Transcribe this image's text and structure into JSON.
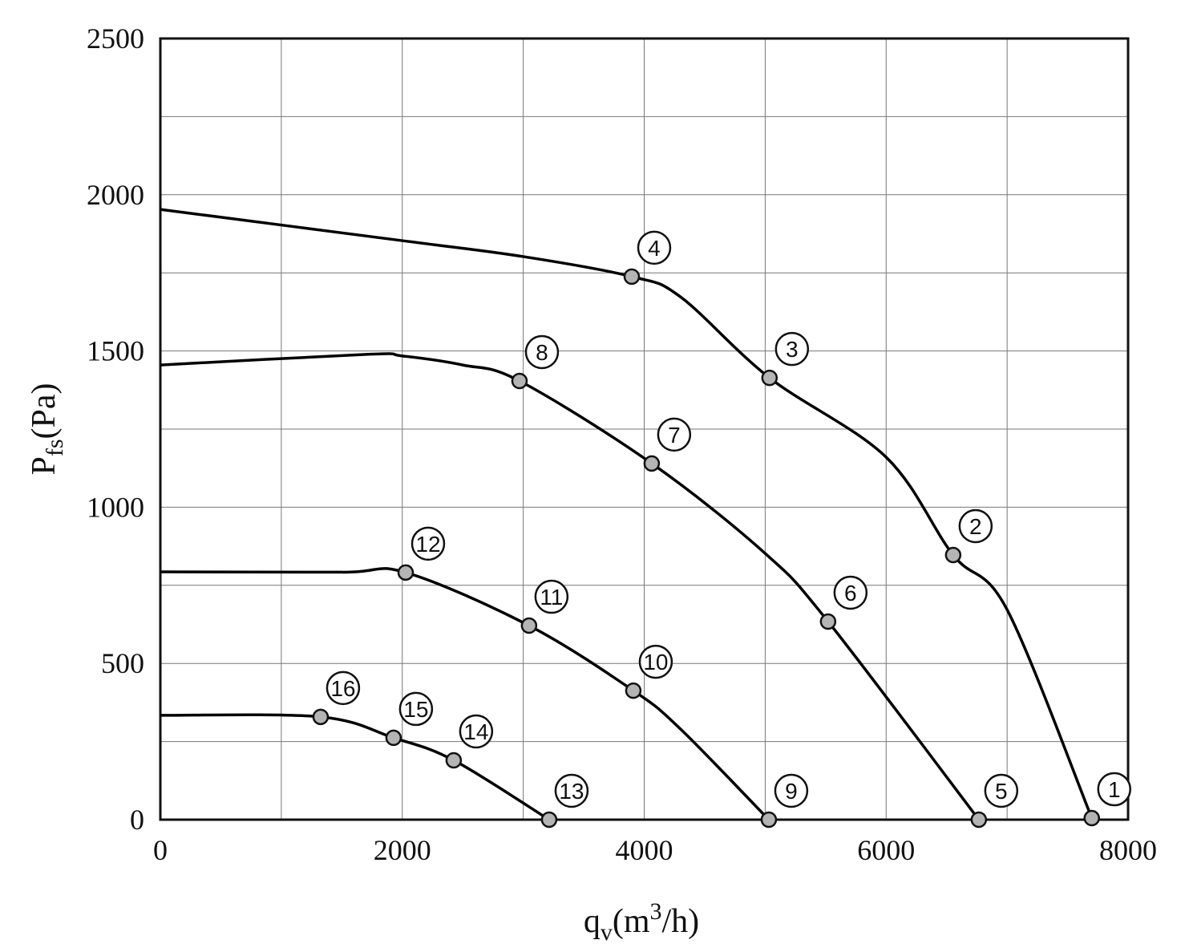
{
  "chart_data": {
    "type": "line",
    "x_label": [
      "q",
      "v",
      "(m",
      "3",
      "/h)"
    ],
    "y_label": [
      "P",
      "fs",
      "(Pa)"
    ],
    "xlim": [
      0,
      8000
    ],
    "xticks": [
      0,
      2000,
      4000,
      6000,
      8000
    ],
    "x_minor_ticks": [
      1000,
      3000,
      5000,
      7000
    ],
    "ylim": [
      0,
      2500
    ],
    "yticks": [
      0,
      500,
      1000,
      1500,
      2000,
      2500
    ],
    "y_minor_ticks": [
      250,
      750,
      1250,
      1750,
      2250
    ],
    "grid": true,
    "series": [
      {
        "color": "#000000",
        "x": [
          0,
          2000,
          3000,
          3897,
          4300,
          5036,
          6000,
          6554,
          7000,
          7700
        ],
        "values": [
          1953,
          1853,
          1802,
          1738,
          1673,
          1414,
          1160,
          847,
          672,
          5
        ],
        "points": {
          "x": [
            3897,
            5036,
            6554,
            7700
          ],
          "values": [
            1738,
            1414,
            847,
            5
          ],
          "labels": [
            "4",
            "3",
            "2",
            "1"
          ]
        }
      },
      {
        "color": "#000000",
        "x": [
          0,
          1700,
          2000,
          2500,
          2969,
          4062,
          5000,
          5520,
          6766
        ],
        "values": [
          1455,
          1489,
          1484,
          1455,
          1404,
          1140,
          852,
          634,
          0
        ],
        "points": {
          "x": [
            2969,
            4062,
            5520,
            6766
          ],
          "values": [
            1404,
            1140,
            634,
            0
          ],
          "labels": [
            "8",
            "7",
            "6",
            "5"
          ]
        }
      },
      {
        "color": "#000000",
        "x": [
          0,
          1500,
          2028,
          3048,
          3910,
          4300,
          5030
        ],
        "values": [
          793,
          792,
          791,
          621,
          413,
          290,
          0
        ],
        "points": {
          "x": [
            2028,
            3048,
            3910,
            5030
          ],
          "values": [
            791,
            621,
            413,
            0
          ],
          "labels": [
            "12",
            "11",
            "10",
            "9"
          ]
        }
      },
      {
        "color": "#000000",
        "x": [
          0,
          1325,
          1928,
          2425,
          3214
        ],
        "values": [
          334,
          329,
          262,
          190,
          0
        ],
        "points": {
          "x": [
            1325,
            1928,
            2425,
            3214
          ],
          "values": [
            329,
            262,
            190,
            0
          ],
          "labels": [
            "16",
            "15",
            "14",
            "13"
          ]
        }
      }
    ]
  }
}
